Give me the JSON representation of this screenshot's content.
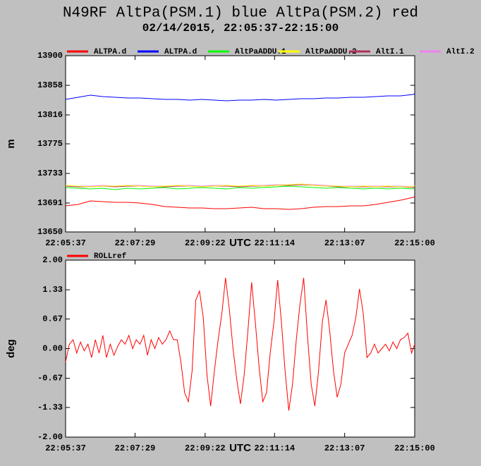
{
  "chart_data": [
    {
      "type": "line",
      "title": "N49RF AltPa(PSM.1) blue AltPa(PSM.2) red",
      "subtitle": "02/14/2015, 22:05:37-22:15:00",
      "ylabel": "m",
      "xlabel": "UTC",
      "x": [
        79537,
        79557,
        79577,
        79597,
        79617,
        79637,
        79657,
        79677,
        79697,
        79717,
        79737,
        79757,
        79777,
        79797,
        79817,
        79837,
        79857,
        79877,
        79897,
        79917,
        79937,
        79957,
        79977,
        79997,
        80017,
        80037,
        80057,
        80077,
        80097,
        80100
      ],
      "series": [
        {
          "name": "ALTPA.d",
          "color": "#ff0000",
          "values": [
            13687,
            13689,
            13694,
            13693,
            13692,
            13692,
            13691,
            13689,
            13686,
            13685,
            13684,
            13684,
            13683,
            13683,
            13684,
            13685,
            13683,
            13683,
            13682,
            13683,
            13685,
            13686,
            13686,
            13687,
            13687,
            13689,
            13692,
            13695,
            13699,
            13700
          ]
        },
        {
          "name": "ALTPA.d",
          "color": "#0000ff",
          "values": [
            13838,
            13841,
            13844,
            13842,
            13841,
            13840,
            13840,
            13839,
            13838,
            13838,
            13837,
            13838,
            13837,
            13836,
            13837,
            13837,
            13838,
            13837,
            13838,
            13839,
            13839,
            13840,
            13840,
            13841,
            13841,
            13842,
            13843,
            13843,
            13845,
            13846
          ]
        },
        {
          "name": "AltPaADDU.1",
          "color": "#00ff00",
          "values": [
            13713,
            13712,
            13711,
            13712,
            13710,
            13712,
            13711,
            13712,
            13713,
            13711,
            13712,
            13713,
            13712,
            13711,
            13713,
            13712,
            13713,
            13714,
            13715,
            13714,
            13713,
            13712,
            13713,
            13712,
            13711,
            13712,
            13711,
            13712,
            13711,
            13713
          ]
        },
        {
          "name": "AltPaADDU.2",
          "color": "#ffff00",
          "values": [
            13716,
            13715,
            13714,
            13715,
            13715,
            13716,
            13715,
            13714,
            13715,
            13716,
            13715,
            13714,
            13715,
            13716,
            13715,
            13716,
            13715,
            13716,
            13717,
            13718,
            13716,
            13715,
            13715,
            13714,
            13715,
            13714,
            13715,
            13714,
            13714,
            13716
          ]
        },
        {
          "name": "AltI.1",
          "color": "#b03060",
          "values": [
            13715,
            13714,
            13714,
            13715,
            13714,
            13715,
            13715,
            13714,
            13714,
            13715,
            13715,
            13714,
            13715,
            13715,
            13714,
            13715,
            13715,
            13716,
            13716,
            13717,
            13716,
            13715,
            13714,
            13714,
            13714,
            13714,
            13714,
            13714,
            13713,
            13714
          ]
        },
        {
          "name": "AltI.2",
          "color": "#ee82ee",
          "values": [
            13716,
            13715,
            13715,
            13716,
            13715,
            13716,
            13716,
            13715,
            13715,
            13716,
            13716,
            13715,
            13716,
            13716,
            13715,
            13716,
            13716,
            13717,
            13717,
            13718,
            13717,
            13716,
            13715,
            13715,
            13715,
            13715,
            13715,
            13715,
            13714,
            13715
          ]
        }
      ],
      "xlim": [
        79537,
        80100
      ],
      "xticks": [
        {
          "value": 79537,
          "label": "22:05:37"
        },
        {
          "value": 79649,
          "label": "22:07:29"
        },
        {
          "value": 79762,
          "label": "22:09:22"
        },
        {
          "value": 79874,
          "label": "22:11:14"
        },
        {
          "value": 79987,
          "label": "22:13:07"
        },
        {
          "value": 80100,
          "label": "22:15:00"
        }
      ],
      "ylim": [
        13650,
        13900
      ],
      "yticks": [
        13650,
        13691,
        13733,
        13775,
        13816,
        13858,
        13900
      ]
    },
    {
      "type": "line",
      "ylabel": "deg",
      "xlabel": "UTC",
      "x": [
        79537,
        79543,
        79549,
        79555,
        79561,
        79567,
        79573,
        79579,
        79585,
        79591,
        79597,
        79603,
        79609,
        79615,
        79621,
        79627,
        79633,
        79639,
        79645,
        79651,
        79657,
        79663,
        79669,
        79675,
        79681,
        79687,
        79693,
        79699,
        79705,
        79711,
        79717,
        79723,
        79729,
        79735,
        79741,
        79747,
        79753,
        79759,
        79765,
        79771,
        79777,
        79783,
        79789,
        79795,
        79801,
        79807,
        79813,
        79819,
        79825,
        79831,
        79837,
        79843,
        79849,
        79855,
        79861,
        79867,
        79873,
        79879,
        79885,
        79891,
        79897,
        79903,
        79909,
        79915,
        79921,
        79927,
        79933,
        79939,
        79945,
        79951,
        79957,
        79963,
        79969,
        79975,
        79981,
        79987,
        79993,
        79999,
        80005,
        80011,
        80017,
        80023,
        80029,
        80035,
        80041,
        80047,
        80053,
        80059,
        80065,
        80071,
        80077,
        80083,
        80089,
        80095,
        80100
      ],
      "series": [
        {
          "name": "ROLLref",
          "color": "#ff0000",
          "values": [
            -0.3,
            0.1,
            0.2,
            -0.1,
            0.15,
            -0.05,
            0.1,
            -0.2,
            0.2,
            -0.1,
            0.3,
            -0.2,
            0.1,
            -0.15,
            0.05,
            0.2,
            0.1,
            0.3,
            0.0,
            0.2,
            0.1,
            0.3,
            -0.15,
            0.2,
            0.0,
            0.25,
            0.1,
            0.2,
            0.4,
            0.2,
            0.2,
            -0.3,
            -1.0,
            -1.2,
            -0.5,
            1.1,
            1.3,
            0.7,
            -0.6,
            -1.3,
            -0.5,
            0.2,
            0.8,
            1.6,
            0.9,
            0.0,
            -0.7,
            -1.25,
            -0.6,
            0.4,
            1.5,
            0.6,
            -0.4,
            -1.2,
            -1.0,
            -0.1,
            0.6,
            1.55,
            0.6,
            -0.5,
            -1.4,
            -0.8,
            0.2,
            1.0,
            1.6,
            0.3,
            -0.8,
            -1.3,
            -0.5,
            0.6,
            1.1,
            0.4,
            -0.5,
            -1.1,
            -0.8,
            -0.1,
            0.1,
            0.3,
            0.7,
            1.35,
            0.8,
            -0.2,
            -0.1,
            0.1,
            -0.1,
            0.0,
            0.1,
            -0.05,
            0.15,
            0.0,
            0.2,
            0.25,
            0.35,
            -0.1,
            0.1
          ]
        }
      ],
      "xlim": [
        79537,
        80100
      ],
      "xticks": [
        {
          "value": 79537,
          "label": "22:05:37"
        },
        {
          "value": 79649,
          "label": "22:07:29"
        },
        {
          "value": 79762,
          "label": "22:09:22"
        },
        {
          "value": 79874,
          "label": "22:11:14"
        },
        {
          "value": 79987,
          "label": "22:13:07"
        },
        {
          "value": 80100,
          "label": "22:15:00"
        }
      ],
      "ylim": [
        -2,
        2
      ],
      "yticks": [
        {
          "value": -2,
          "label": "-2.00"
        },
        -1.33,
        -0.67,
        {
          "value": 0,
          "label": "0.00"
        },
        0.67,
        1.33,
        {
          "value": 2,
          "label": "2.00"
        }
      ]
    }
  ]
}
